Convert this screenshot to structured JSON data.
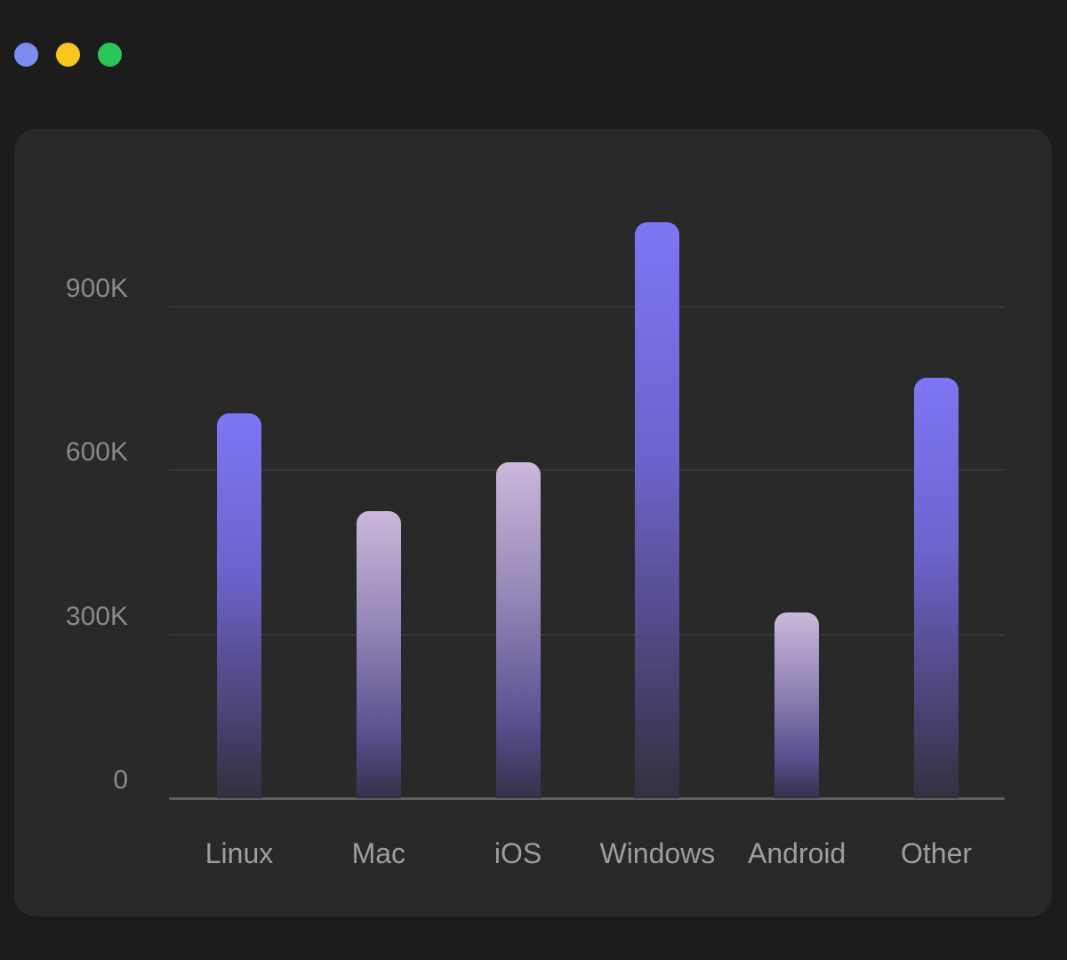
{
  "window_controls": [
    {
      "name": "window-dot-blue",
      "color": "#7d8cf0"
    },
    {
      "name": "window-dot-yellow",
      "color": "#f7c71f"
    },
    {
      "name": "window-dot-green",
      "color": "#2bc657"
    }
  ],
  "theme": {
    "background": "#1c1c1c",
    "card_background": "#292929",
    "gridline_color": "#373737",
    "axis_line_color": "#5f5f5f",
    "y_label_color": "#8a8a8a",
    "x_label_color": "#9e9e9e"
  },
  "chart_data": {
    "type": "bar",
    "title": "",
    "categories": [
      "Linux",
      "Mac",
      "iOS",
      "Windows",
      "Android",
      "Other"
    ],
    "values": [
      705000,
      525000,
      615000,
      1055000,
      340000,
      770000
    ],
    "y_ticks": [
      {
        "label": "0",
        "value": 0
      },
      {
        "label": "300K",
        "value": 300000
      },
      {
        "label": "600K",
        "value": 600000
      },
      {
        "label": "900K",
        "value": 900000
      }
    ],
    "ylim": [
      0,
      1100000
    ],
    "grid": "horizontal",
    "legend": "none",
    "bar_styles": [
      "indigo",
      "lavender",
      "lavender",
      "indigo",
      "lavender",
      "indigo"
    ],
    "palettes": {
      "indigo": [
        {
          "color": "#7e76f4",
          "pos": 0
        },
        {
          "color": "#6c63cb",
          "pos": 42
        },
        {
          "color": "#4c4375",
          "pos": 78
        },
        {
          "color": "#34303f",
          "pos": 100
        }
      ],
      "lavender": [
        {
          "color": "#c9b8da",
          "pos": 0
        },
        {
          "color": "#9486b6",
          "pos": 40
        },
        {
          "color": "#5a5090",
          "pos": 78
        },
        {
          "color": "#363049",
          "pos": 100
        }
      ]
    }
  }
}
